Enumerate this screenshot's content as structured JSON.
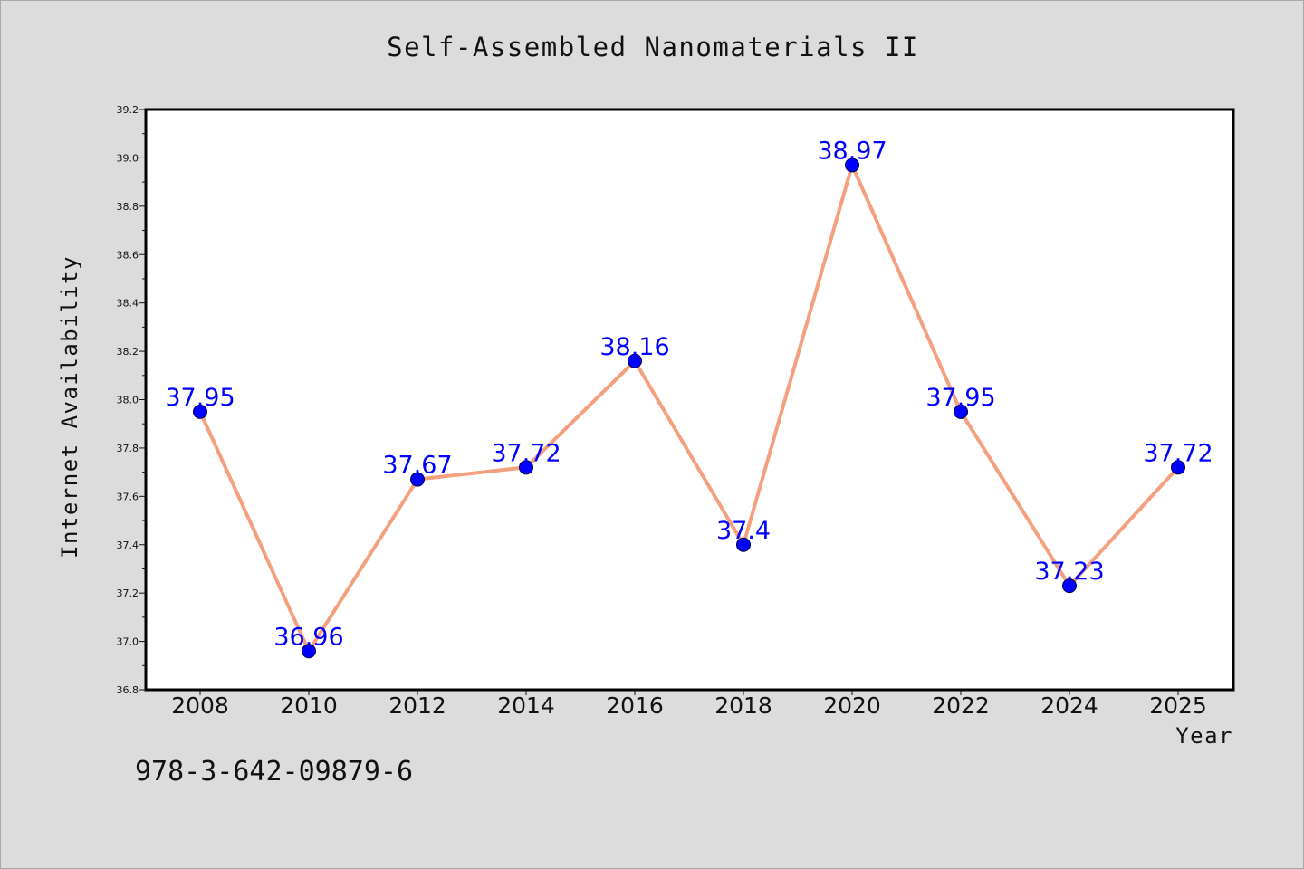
{
  "title": "Self-Assembled Nanomaterials II",
  "footer_code": "978-3-642-09879-6",
  "chart_data": {
    "type": "line",
    "title": "Self-Assembled Nanomaterials II",
    "xlabel": "Year",
    "ylabel": "Internet Availability",
    "categories": [
      "2008",
      "2010",
      "2012",
      "2014",
      "2016",
      "2018",
      "2020",
      "2022",
      "2024",
      "2025"
    ],
    "series": [
      {
        "values": [
          37.95,
          36.96,
          37.67,
          37.72,
          38.16,
          37.4,
          38.97,
          37.95,
          37.23,
          37.72
        ],
        "data_labels": [
          "37.95",
          "36.96",
          "37.67",
          "37.72",
          "38.16",
          "37.4",
          "38.97",
          "37.95",
          "37.23",
          "37.72"
        ]
      }
    ],
    "ylim": [
      36.8,
      39.2
    ],
    "yticks": [
      "36.8",
      "37.0",
      "37.2",
      "37.4",
      "37.6",
      "37.8",
      "38.0",
      "38.2",
      "38.4",
      "38.6",
      "38.8",
      "39.0",
      "39.2"
    ],
    "grid": false,
    "legend": "none",
    "colors": {
      "line": "#f4a07e",
      "marker": "#0000ff",
      "data_label": "#0000ff",
      "plot_background": "#ffffff",
      "figure_background": "#dcdcdc"
    }
  }
}
